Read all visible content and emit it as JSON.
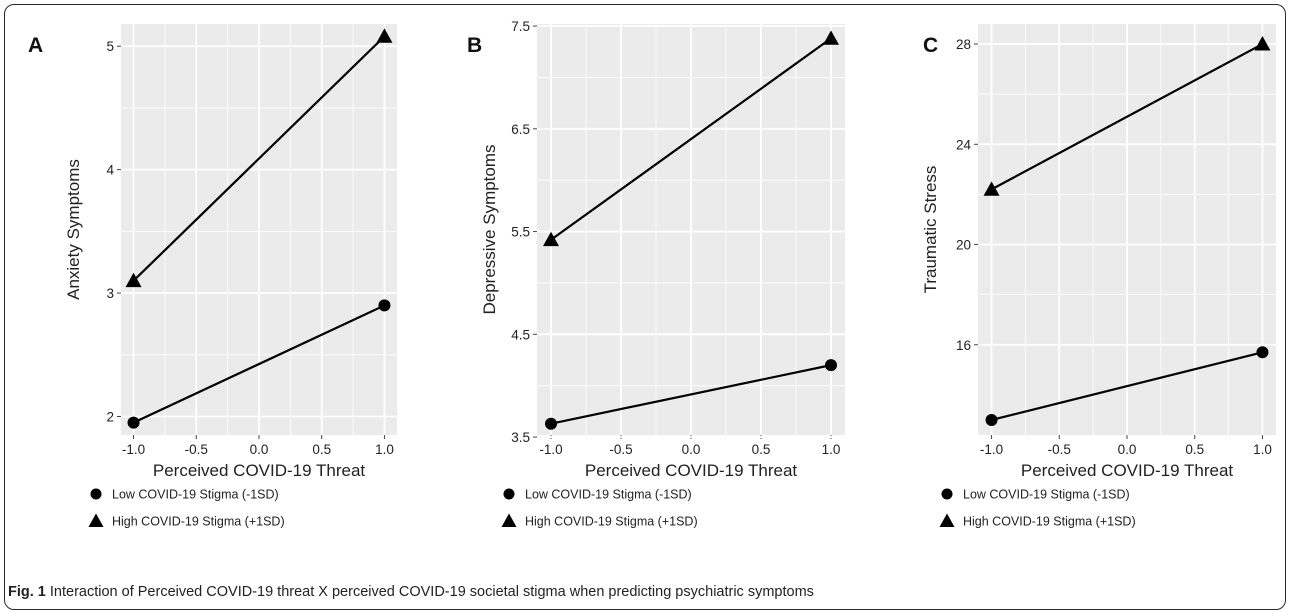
{
  "caption": {
    "label": "Fig. 1",
    "text": "Interaction of Perceived COVID-19 threat X perceived COVID-19 societal stigma when predicting psychiatric symptoms"
  },
  "colors": {
    "panel_bg": "#ebebeb",
    "grid": "#ffffff",
    "line": "#000000",
    "text": "#222222"
  },
  "chart_data": [
    {
      "type": "line",
      "panel_label": "A",
      "xlabel": "Perceived COVID-19 Threat",
      "ylabel": "Anxiety Symptoms",
      "x": [
        -1.0,
        1.0
      ],
      "xlim": [
        -1.1,
        1.1
      ],
      "xticks": [
        -1.0,
        -0.5,
        0.0,
        0.5,
        1.0
      ],
      "xtick_labels": [
        "-1.0",
        "-0.5",
        "0.0",
        "0.5",
        "1.0"
      ],
      "ylim": [
        1.85,
        5.18
      ],
      "yticks": [
        2,
        3,
        4,
        5
      ],
      "ytick_labels": [
        "2",
        "3",
        "4",
        "5"
      ],
      "grid": true,
      "legend_position": "bottom",
      "series": [
        {
          "name": "Low COVID-19 Stigma (-1SD)",
          "marker": "circle",
          "values": [
            1.95,
            2.9
          ]
        },
        {
          "name": "High COVID-19 Stigma (+1SD)",
          "marker": "triangle",
          "values": [
            3.1,
            5.08
          ]
        }
      ]
    },
    {
      "type": "line",
      "panel_label": "B",
      "xlabel": "Perceived COVID-19 Threat",
      "ylabel": "Depressive Symptoms",
      "x": [
        -1.0,
        1.0
      ],
      "xlim": [
        -1.1,
        1.1
      ],
      "xticks": [
        -1.0,
        -0.5,
        0.0,
        0.5,
        1.0
      ],
      "xtick_labels": [
        "-1.0",
        "-0.5",
        "0.0",
        "0.5",
        "1.0"
      ],
      "ylim": [
        3.52,
        7.52
      ],
      "yticks": [
        3.5,
        4.5,
        5.5,
        6.5,
        7.5
      ],
      "ytick_labels": [
        "3.5",
        "4.5",
        "5.5",
        "6.5",
        "7.5"
      ],
      "grid": true,
      "legend_position": "bottom",
      "series": [
        {
          "name": "Low COVID-19 Stigma (-1SD)",
          "marker": "circle",
          "values": [
            3.63,
            4.2
          ]
        },
        {
          "name": "High COVID-19 Stigma (+1SD)",
          "marker": "triangle",
          "values": [
            5.42,
            7.38
          ]
        }
      ]
    },
    {
      "type": "line",
      "panel_label": "C",
      "xlabel": "Perceived COVID-19 Threat",
      "ylabel": "Traumatic Stress",
      "x": [
        -1.0,
        1.0
      ],
      "xlim": [
        -1.1,
        1.1
      ],
      "xticks": [
        -1.0,
        -0.5,
        0.0,
        0.5,
        1.0
      ],
      "xtick_labels": [
        "-1.0",
        "-0.5",
        "0.0",
        "0.5",
        "1.0"
      ],
      "ylim": [
        12.4,
        28.8
      ],
      "yticks": [
        16,
        20,
        24,
        28
      ],
      "ytick_labels": [
        "16",
        "20",
        "24",
        "28"
      ],
      "grid": true,
      "legend_position": "bottom",
      "series": [
        {
          "name": "Low COVID-19 Stigma (-1SD)",
          "marker": "circle",
          "values": [
            13.0,
            15.7
          ]
        },
        {
          "name": "High COVID-19 Stigma (+1SD)",
          "marker": "triangle",
          "values": [
            22.2,
            28.0
          ]
        }
      ]
    }
  ]
}
